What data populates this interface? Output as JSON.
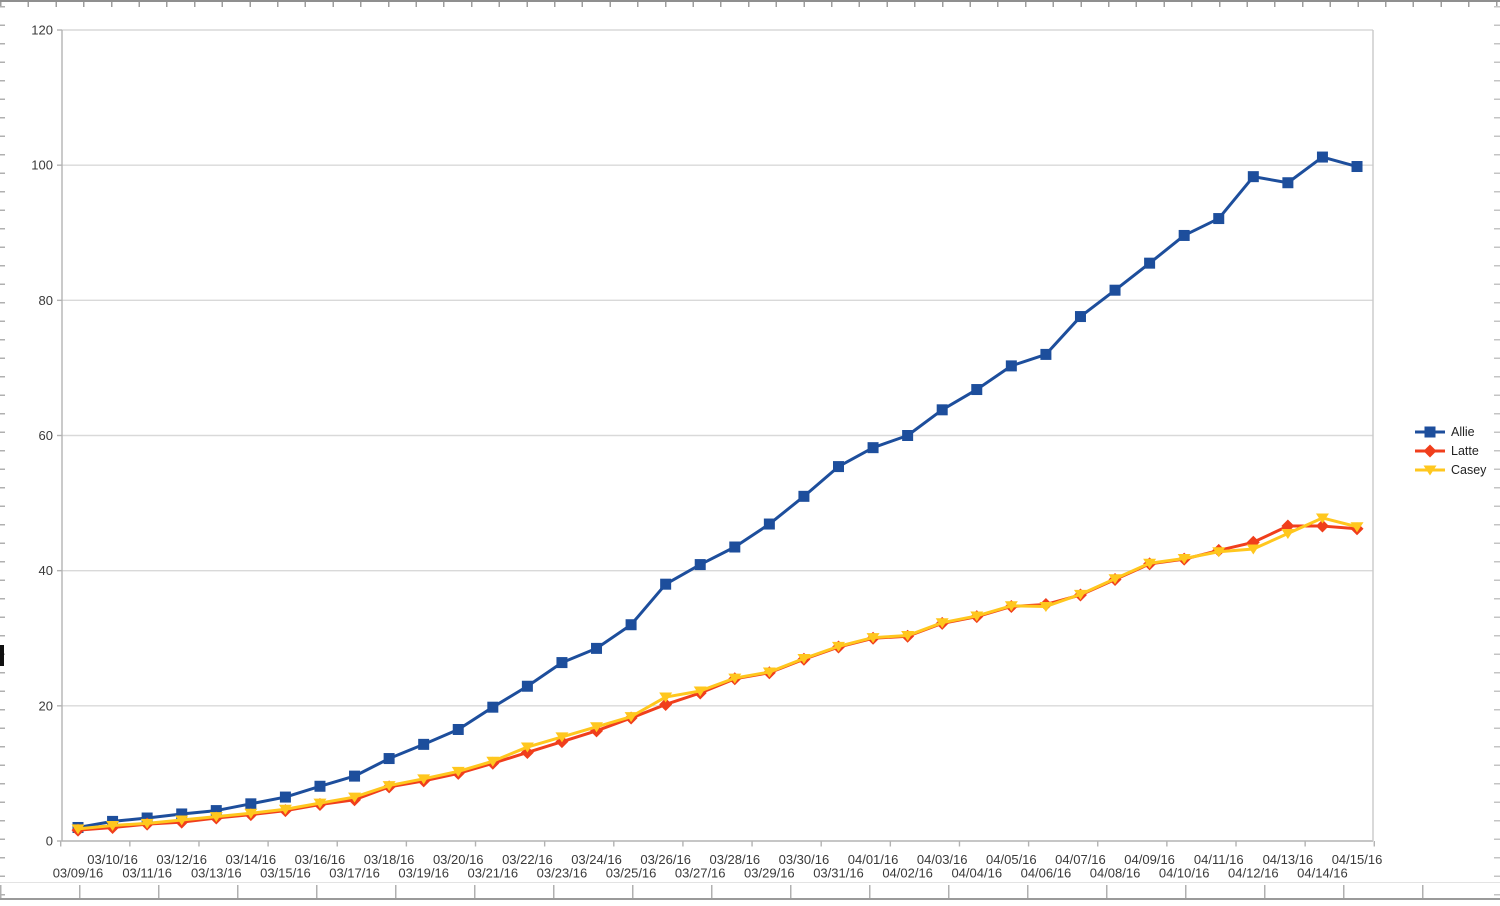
{
  "chart_data": {
    "type": "line",
    "title": "",
    "xlabel": "",
    "ylabel": "",
    "ylim": [
      0,
      120
    ],
    "yticks": [
      0,
      20,
      40,
      60,
      80,
      100,
      120
    ],
    "grid": "horizontal",
    "legend_position": "right",
    "x_stagger": true,
    "categories": [
      "03/09/16",
      "03/10/16",
      "03/11/16",
      "03/12/16",
      "03/13/16",
      "03/14/16",
      "03/15/16",
      "03/16/16",
      "03/17/16",
      "03/18/16",
      "03/19/16",
      "03/20/16",
      "03/21/16",
      "03/22/16",
      "03/23/16",
      "03/24/16",
      "03/25/16",
      "03/26/16",
      "03/27/16",
      "03/28/16",
      "03/29/16",
      "03/30/16",
      "03/31/16",
      "04/01/16",
      "04/02/16",
      "04/03/16",
      "04/04/16",
      "04/05/16",
      "04/06/16",
      "04/07/16",
      "04/08/16",
      "04/09/16",
      "04/10/16",
      "04/11/16",
      "04/12/16",
      "04/13/16",
      "04/14/16",
      "04/15/16"
    ],
    "series": [
      {
        "name": "Allie",
        "color": "#1D4E9C",
        "marker": "square",
        "values": [
          2.0,
          2.9,
          3.4,
          4.0,
          4.5,
          5.5,
          6.5,
          8.1,
          9.6,
          12.2,
          14.3,
          16.5,
          19.8,
          22.9,
          26.4,
          28.5,
          32.0,
          38.0,
          40.9,
          43.5,
          46.9,
          51.0,
          55.4,
          58.2,
          60.0,
          63.8,
          66.8,
          70.3,
          72.0,
          77.6,
          81.5,
          85.5,
          89.6,
          92.1,
          98.3,
          97.4,
          101.2,
          99.8
        ]
      },
      {
        "name": "Latte",
        "color": "#F03E1C",
        "marker": "diamond",
        "values": [
          1.6,
          2.0,
          2.5,
          2.8,
          3.4,
          3.9,
          4.5,
          5.4,
          6.1,
          8.0,
          8.9,
          10.0,
          11.5,
          13.1,
          14.7,
          16.3,
          18.2,
          20.2,
          21.9,
          24.0,
          24.9,
          26.9,
          28.7,
          30.0,
          30.3,
          32.2,
          33.2,
          34.7,
          35.0,
          36.4,
          38.7,
          41.0,
          41.7,
          43.0,
          44.2,
          46.6,
          46.6,
          46.2
        ]
      },
      {
        "name": "Casey",
        "color": "#FFC71E",
        "marker": "triangle-down",
        "values": [
          1.8,
          2.3,
          2.6,
          3.1,
          3.6,
          4.1,
          4.7,
          5.6,
          6.5,
          8.2,
          9.2,
          10.3,
          11.8,
          13.9,
          15.4,
          16.9,
          18.4,
          21.3,
          22.2,
          24.1,
          25.0,
          27.0,
          28.8,
          30.1,
          30.4,
          32.3,
          33.3,
          34.8,
          34.7,
          36.5,
          38.8,
          41.1,
          41.8,
          42.8,
          43.2,
          45.5,
          47.8,
          46.5
        ]
      }
    ],
    "colors": {
      "gridline": "#d9d9d9",
      "plot_border": "#c9c9c9",
      "axis": "#b3b3b3",
      "label_text": "#3a3a3a"
    }
  }
}
